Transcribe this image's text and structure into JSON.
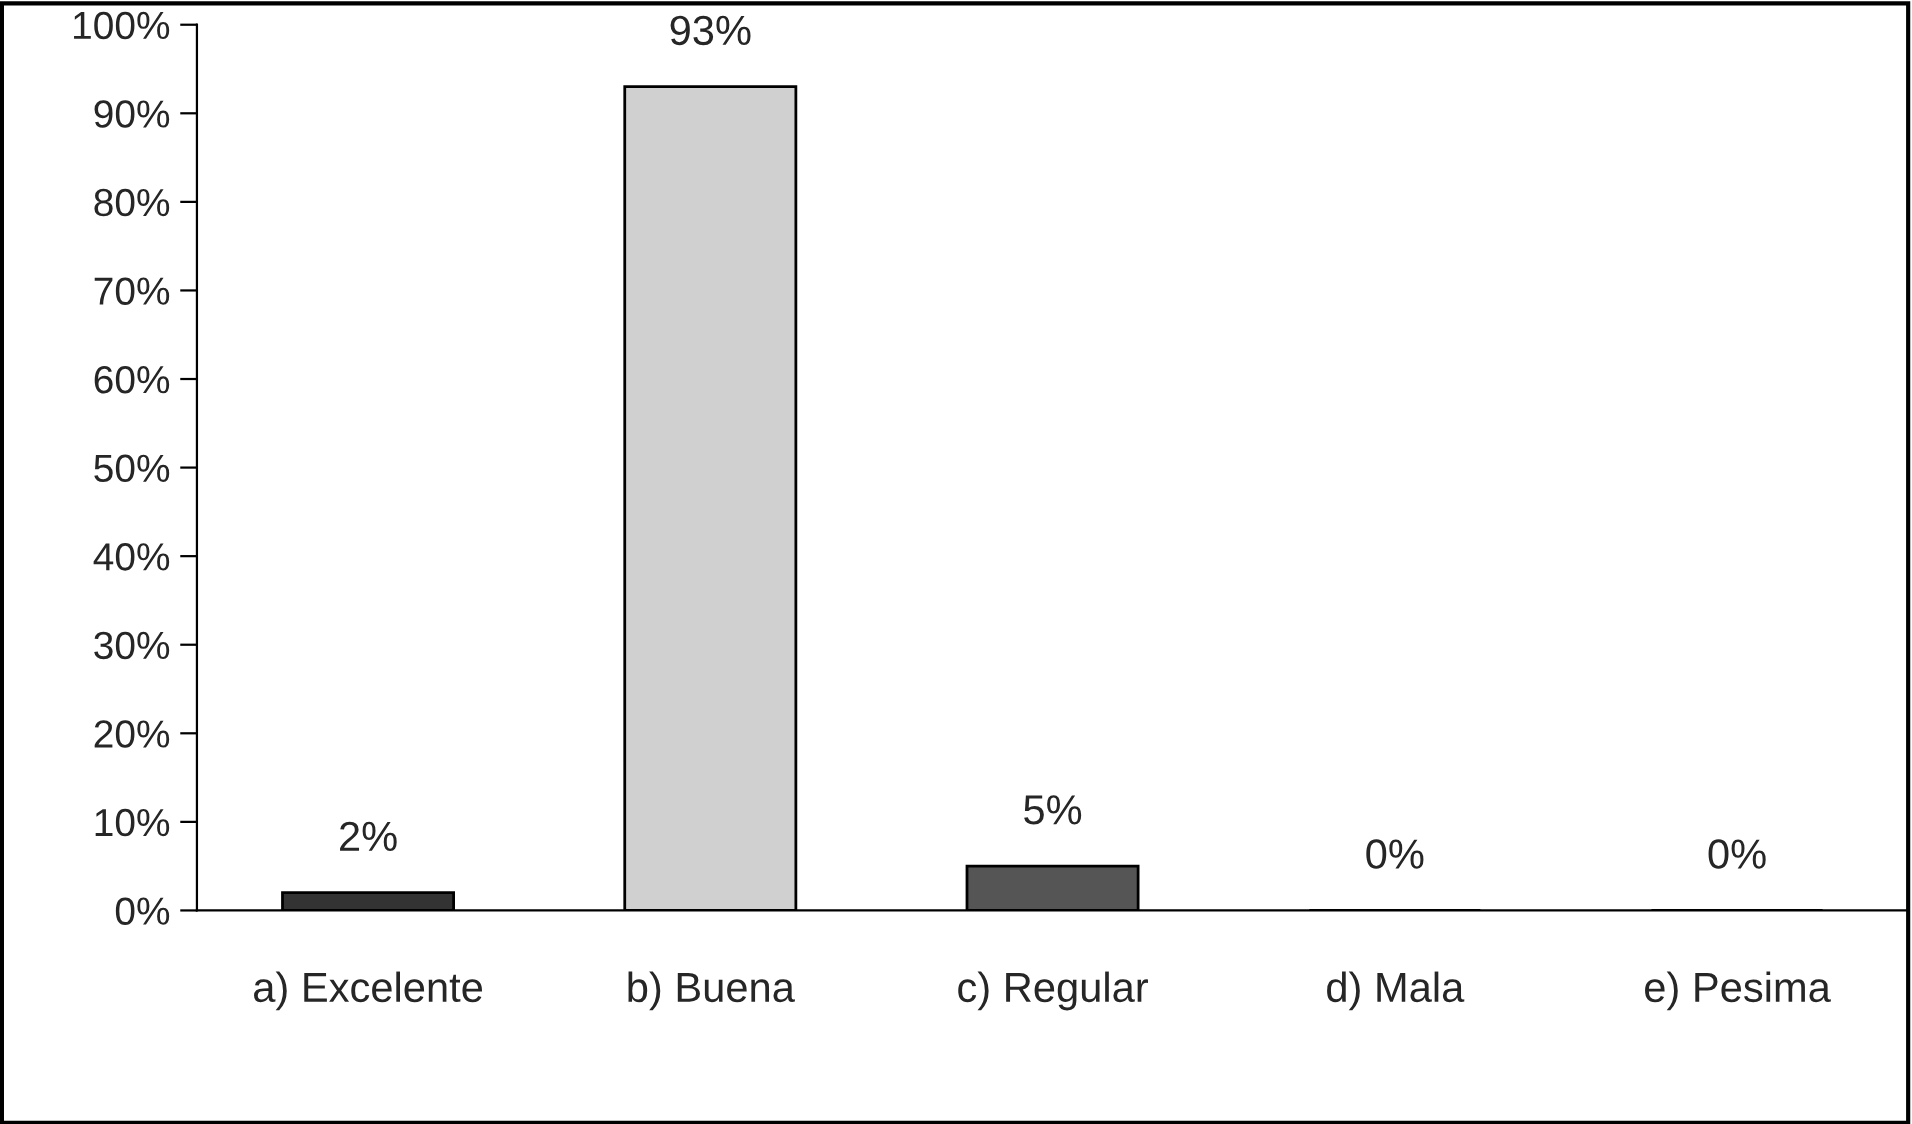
{
  "chart_data": {
    "type": "bar",
    "categories": [
      "a) Excelente",
      "b) Buena",
      "c) Regular",
      "d) Mala",
      "e) Pesima"
    ],
    "values": [
      2,
      93,
      5,
      0,
      0
    ],
    "colors": [
      "#333333",
      "#d0d0d0",
      "#555555",
      "#000000",
      "#000000"
    ],
    "value_labels": [
      "2%",
      "93%",
      "5%",
      "0%",
      "0%"
    ],
    "ylim": [
      0,
      100
    ],
    "yticks": [
      {
        "value": 0,
        "label": "0%"
      },
      {
        "value": 10,
        "label": "10%"
      },
      {
        "value": 20,
        "label": "20%"
      },
      {
        "value": 30,
        "label": "30%"
      },
      {
        "value": 40,
        "label": "40%"
      },
      {
        "value": 50,
        "label": "50%"
      },
      {
        "value": 60,
        "label": "60%"
      },
      {
        "value": 70,
        "label": "70%"
      },
      {
        "value": 80,
        "label": "80%"
      },
      {
        "value": 90,
        "label": "90%"
      },
      {
        "value": 100,
        "label": "100%"
      }
    ],
    "grid": false,
    "legend": false
  }
}
